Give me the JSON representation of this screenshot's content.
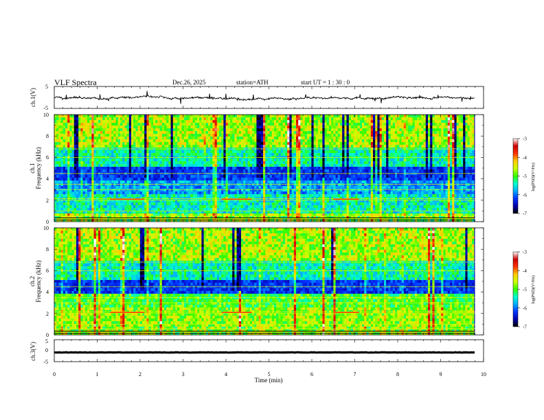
{
  "chart_data": {
    "type": "heatmap",
    "title": "VLF  Spectra",
    "header": {
      "date": "Dec.26, 2025",
      "station": "station=ATH",
      "start": "start  UT  =   1 : 30 : 0"
    },
    "xlabel": "Time  (min)",
    "xlim": [
      0,
      10
    ],
    "xticks": [
      "0",
      "1",
      "2",
      "3",
      "4",
      "5",
      "6",
      "7",
      "8",
      "9",
      "10"
    ],
    "data_end_min": 9.8,
    "panels": [
      {
        "id": "ch1-waveform",
        "kind": "line",
        "ylabel": "ch.1(V)",
        "ylim": [
          -5,
          5
        ],
        "yticks": [
          "5",
          "-5"
        ]
      },
      {
        "id": "ch1-spectrogram",
        "kind": "spectrogram",
        "ylabel_line1": "ch.1",
        "ylabel_line2": "Frequency  (kHz)",
        "ylim": [
          0,
          10
        ],
        "yticks": [
          "0",
          "2",
          "4",
          "6",
          "8",
          "10"
        ],
        "tone_lines_khz": [
          0.3,
          0.6,
          1.0,
          2.0,
          2.15,
          3.0,
          3.5,
          4.5,
          6.0,
          6.8
        ]
      },
      {
        "id": "ch2-spectrogram",
        "kind": "spectrogram",
        "ylabel_line1": "ch.2",
        "ylabel_line2": "Frequency  (kHz)",
        "ylim": [
          0,
          10
        ],
        "yticks": [
          "0",
          "2",
          "4",
          "6",
          "8",
          "10"
        ],
        "tone_lines_khz": [
          0.3,
          0.6,
          1.0,
          2.0,
          2.15,
          3.0,
          3.5,
          4.5,
          6.0,
          6.8
        ]
      },
      {
        "id": "ch3-waveform",
        "kind": "line",
        "ylabel": "ch.3(V)",
        "ylim": [
          -5,
          5
        ],
        "yticks": [
          "5",
          "0",
          "-5"
        ]
      }
    ],
    "colorbar": {
      "label": "log(PSD)(V²/Hz)",
      "range": [
        -7,
        -3
      ],
      "ticks": [
        "-3",
        "-4",
        "-5",
        "-6",
        "-7"
      ],
      "colors": [
        "#000000",
        "#0000aa",
        "#0033ff",
        "#00aaff",
        "#00ffcc",
        "#33ff00",
        "#ccff00",
        "#ffcc00",
        "#ff3300",
        "#cc0000",
        "#ffffff"
      ]
    }
  }
}
